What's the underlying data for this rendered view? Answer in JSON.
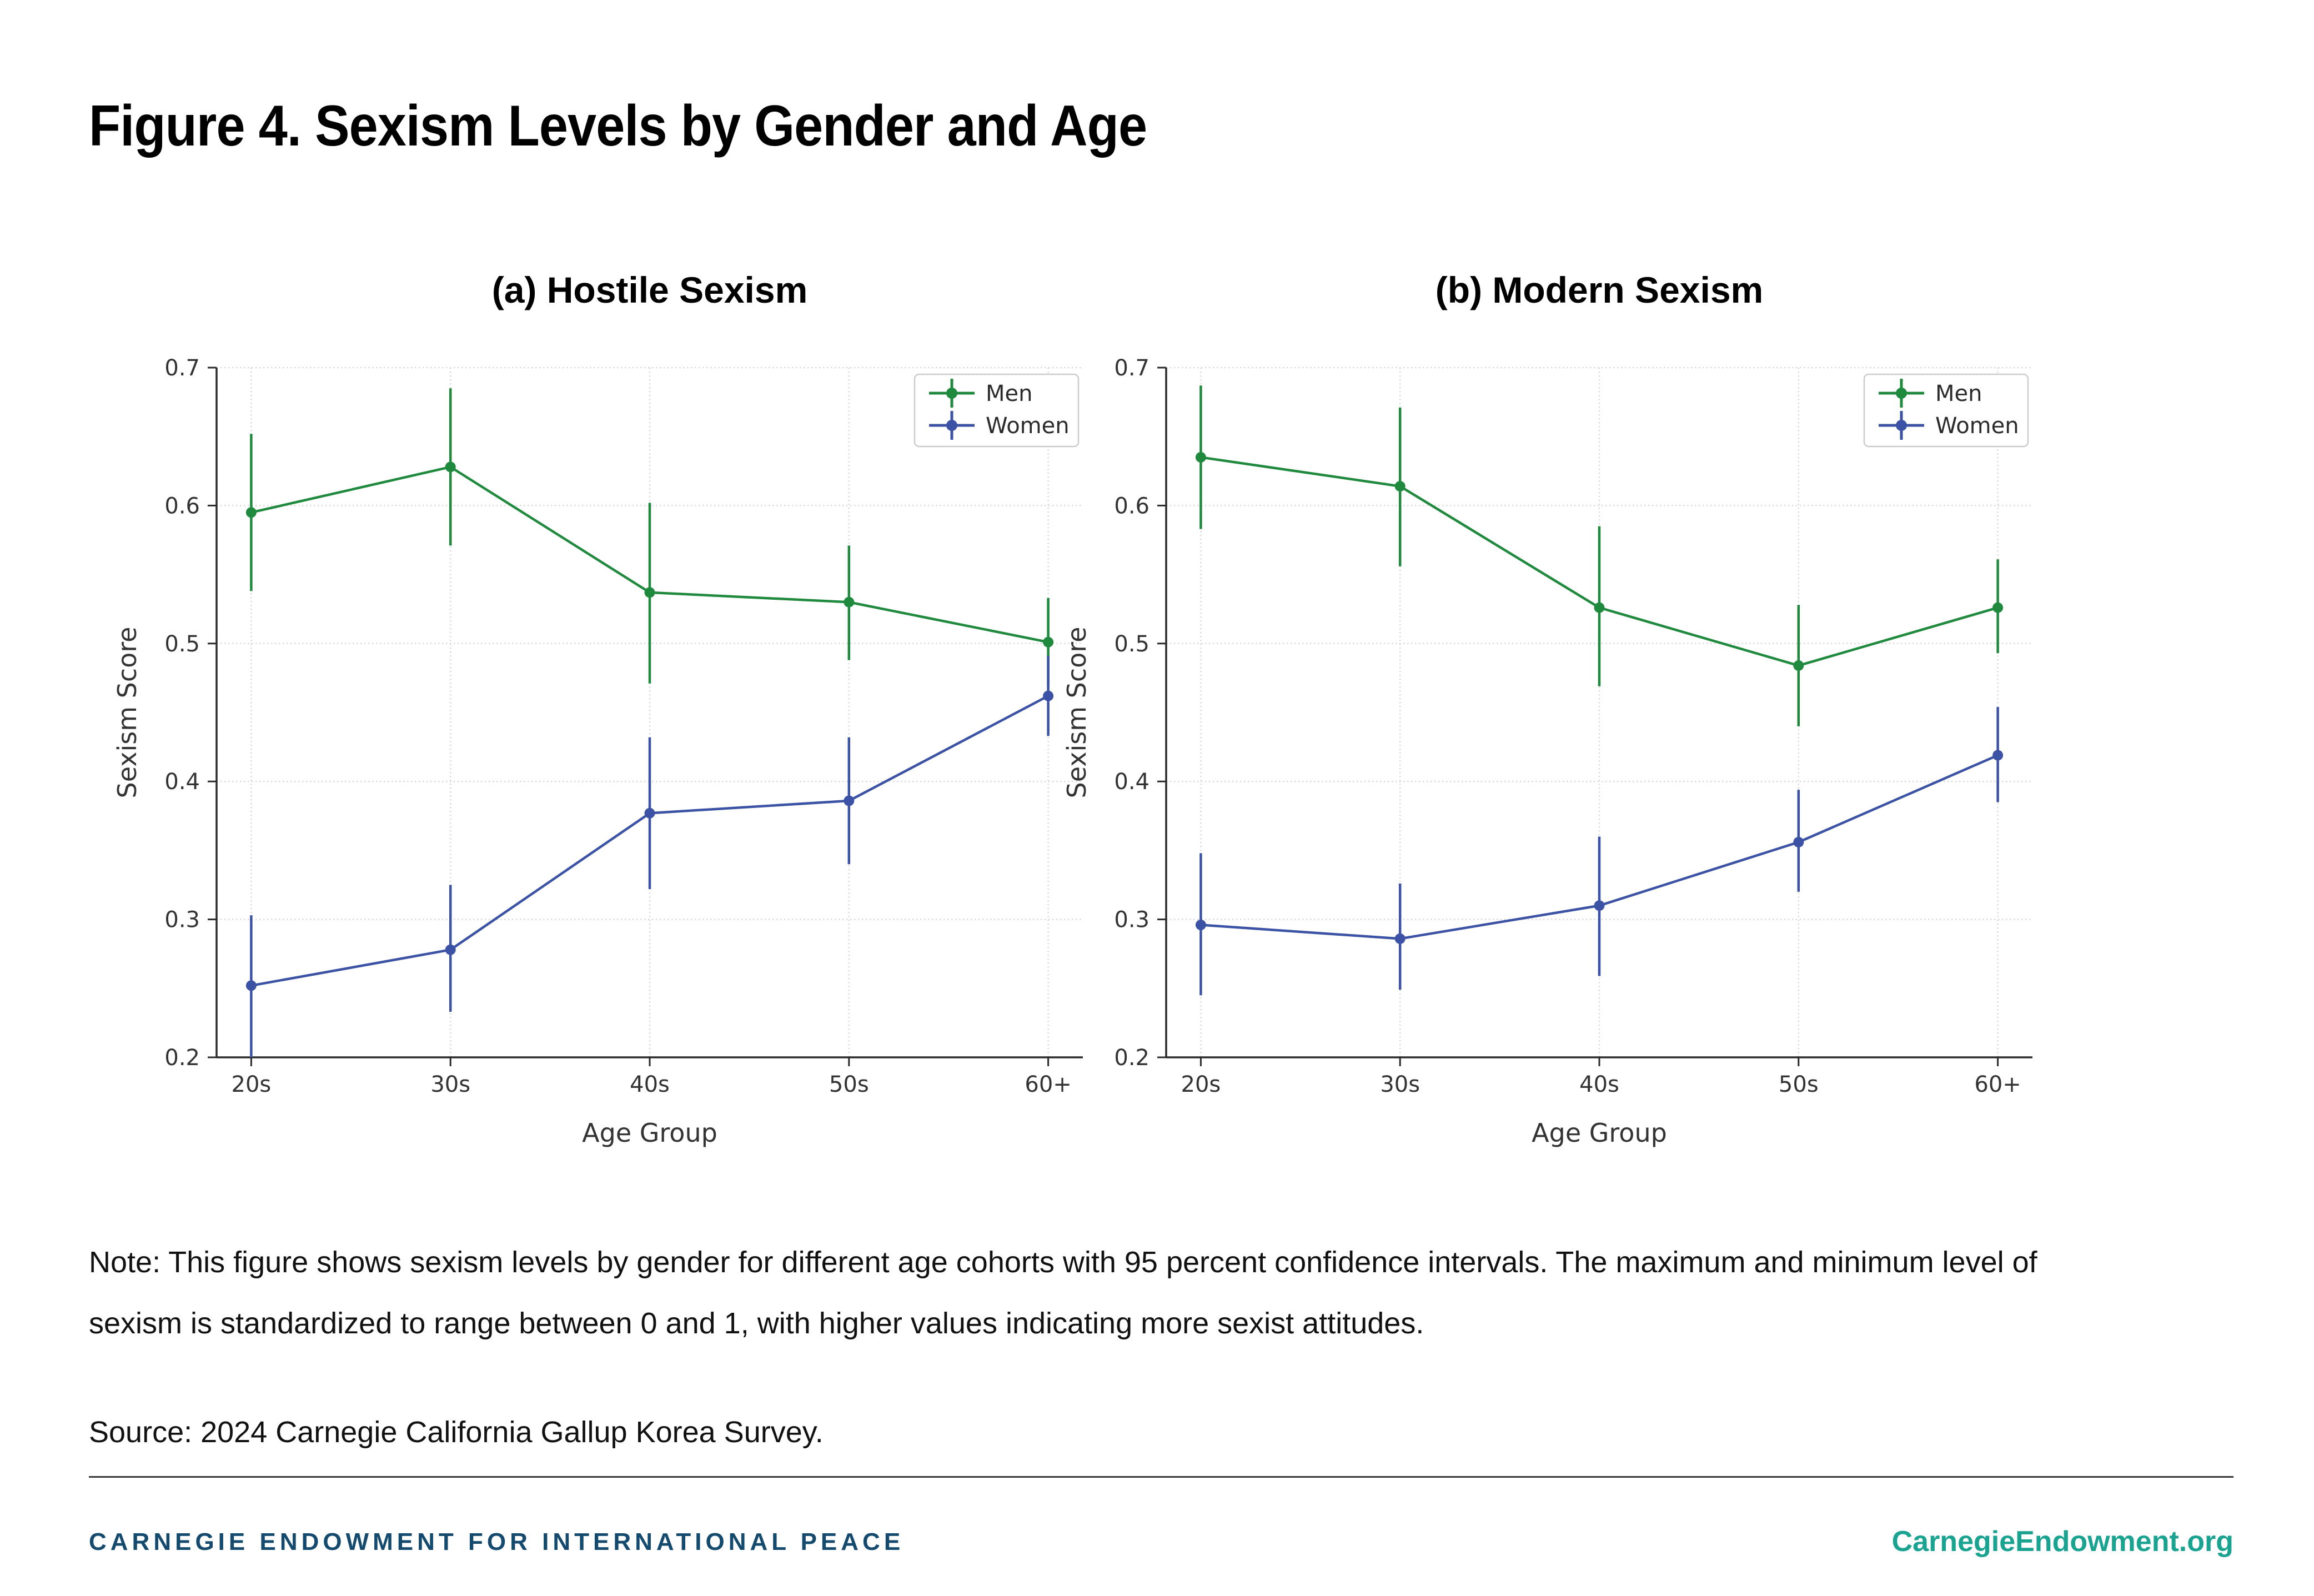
{
  "page": {
    "title": "Figure 4. Sexism Levels by Gender and Age",
    "note": "Note: This figure shows sexism levels by gender for different age cohorts with 95 percent confidence intervals. The maximum and minimum level of sexism is standardized to range between 0 and 1, with higher values indicating more sexist attitudes.",
    "source": "Source: 2024 Carnegie California Gallup Korea Survey.",
    "footer_left": "CARNEGIE ENDOWMENT FOR INTERNATIONAL PEACE",
    "footer_right": "CarnegieEndowment.org"
  },
  "colors": {
    "men": "#1f8a3d",
    "women": "#3c53a5",
    "grid": "#dadada",
    "spine": "#2b2b2b",
    "tick_label": "#333333",
    "legend_border": "#cccccc",
    "legend_text": "#2b2b2b",
    "navy": "#154a6f",
    "teal": "#1aa391"
  },
  "chart_data": [
    {
      "type": "line",
      "title": "(a) Hostile Sexism",
      "xlabel": "Age Group",
      "ylabel": "Sexism Score",
      "categories": [
        "20s",
        "30s",
        "40s",
        "50s",
        "60+"
      ],
      "ylim": [
        0.2,
        0.7
      ],
      "yticks": [
        0.2,
        0.3,
        0.4,
        0.5,
        0.6,
        0.7
      ],
      "grid": true,
      "legend_position": "upper right",
      "legend_entries": [
        "Men",
        "Women"
      ],
      "series": [
        {
          "name": "Men",
          "color_key": "men",
          "values": [
            0.595,
            0.628,
            0.537,
            0.53,
            0.501
          ],
          "ci_low": [
            0.538,
            0.571,
            0.471,
            0.488,
            0.469
          ],
          "ci_high": [
            0.652,
            0.685,
            0.602,
            0.571,
            0.533
          ]
        },
        {
          "name": "Women",
          "color_key": "women",
          "values": [
            0.252,
            0.278,
            0.377,
            0.386,
            0.462
          ],
          "ci_low": [
            0.2,
            0.233,
            0.322,
            0.34,
            0.433
          ],
          "ci_high": [
            0.303,
            0.325,
            0.432,
            0.432,
            0.491
          ]
        }
      ]
    },
    {
      "type": "line",
      "title": "(b) Modern Sexism",
      "xlabel": "Age Group",
      "ylabel": "Sexism Score",
      "categories": [
        "20s",
        "30s",
        "40s",
        "50s",
        "60+"
      ],
      "ylim": [
        0.2,
        0.7
      ],
      "yticks": [
        0.2,
        0.3,
        0.4,
        0.5,
        0.6,
        0.7
      ],
      "grid": true,
      "legend_position": "upper right",
      "legend_entries": [
        "Men",
        "Women"
      ],
      "series": [
        {
          "name": "Men",
          "color_key": "men",
          "values": [
            0.635,
            0.614,
            0.526,
            0.484,
            0.526
          ],
          "ci_low": [
            0.583,
            0.556,
            0.469,
            0.44,
            0.493
          ],
          "ci_high": [
            0.687,
            0.671,
            0.585,
            0.528,
            0.561
          ]
        },
        {
          "name": "Women",
          "color_key": "women",
          "values": [
            0.296,
            0.286,
            0.31,
            0.356,
            0.419
          ],
          "ci_low": [
            0.245,
            0.249,
            0.259,
            0.32,
            0.385
          ],
          "ci_high": [
            0.348,
            0.326,
            0.36,
            0.394,
            0.454
          ]
        }
      ]
    }
  ]
}
